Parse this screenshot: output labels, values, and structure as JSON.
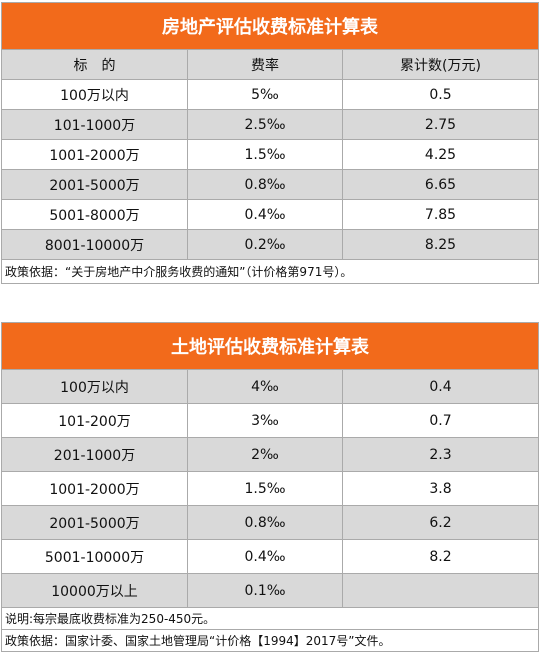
{
  "table1": {
    "title": "房地产评估收费标准计算表",
    "header": [
      "标　的",
      "费率",
      "累计数(万元)"
    ],
    "rows": [
      [
        "100万以内",
        "5‰",
        "0.5"
      ],
      [
        "101-1000万",
        "2.5‰",
        "2.75"
      ],
      [
        "1001-2000万",
        "1.5‰",
        "4.25"
      ],
      [
        "2001-5000万",
        "0.8‰",
        "6.65"
      ],
      [
        "5001-8000万",
        "0.4‰",
        "7.85"
      ],
      [
        "8001-10000万",
        "0.2‰",
        "8.25"
      ]
    ],
    "notes": [
      "政策依据：“关于房地产中介服务收费的通知”（计价格第971号）。"
    ]
  },
  "table2": {
    "title": "土地评估收费标准计算表",
    "rows": [
      [
        "100万以内",
        "4‰",
        "0.4"
      ],
      [
        "101-200万",
        "3‰",
        "0.7"
      ],
      [
        "201-1000万",
        "2‰",
        "2.3"
      ],
      [
        "1001-2000万",
        "1.5‰",
        "3.8"
      ],
      [
        "2001-5000万",
        "0.8‰",
        "6.2"
      ],
      [
        "5001-10000万",
        "0.4‰",
        "8.2"
      ],
      [
        "10000万以上",
        "0.1‰"
      ]
    ],
    "notes": [
      "说明:每宗最底收费标准为250-450元。",
      "政策依据：国家计委、国家土地管理局“计价格【1994】2017号”文件。"
    ]
  }
}
